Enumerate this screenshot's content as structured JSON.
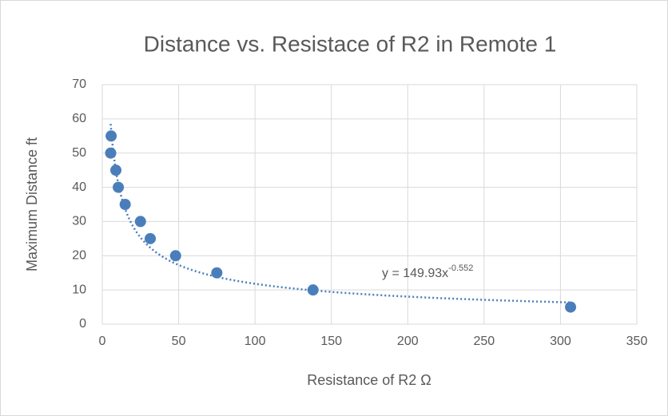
{
  "chart_data": {
    "type": "scatter",
    "title": "Distance vs. Resistace of R2 in Remote 1",
    "x_label": "Resistance of R2 Ω",
    "y_label": "Maximum Distance ft",
    "series": [
      {
        "name": "Distance",
        "color": "#4a7ebb",
        "x": [
          5.8,
          5.5,
          8.9,
          10.5,
          15,
          25,
          31.4,
          48,
          75,
          138,
          306.6
        ],
        "values": [
          55,
          50,
          45,
          40,
          35,
          30,
          25,
          20,
          15,
          10,
          5
        ]
      }
    ],
    "trendline": {
      "a": 149.93,
      "b": -0.552,
      "label": "y = 149.93x",
      "label_sup": "-0.552",
      "color": "#4a7ebb"
    },
    "xlim": [
      0,
      350
    ],
    "xticks": [
      0,
      50,
      100,
      150,
      200,
      250,
      300,
      350
    ],
    "ylim": [
      0,
      70
    ],
    "yticks": [
      0,
      10,
      20,
      30,
      40,
      50,
      60,
      70
    ],
    "grid": true
  }
}
